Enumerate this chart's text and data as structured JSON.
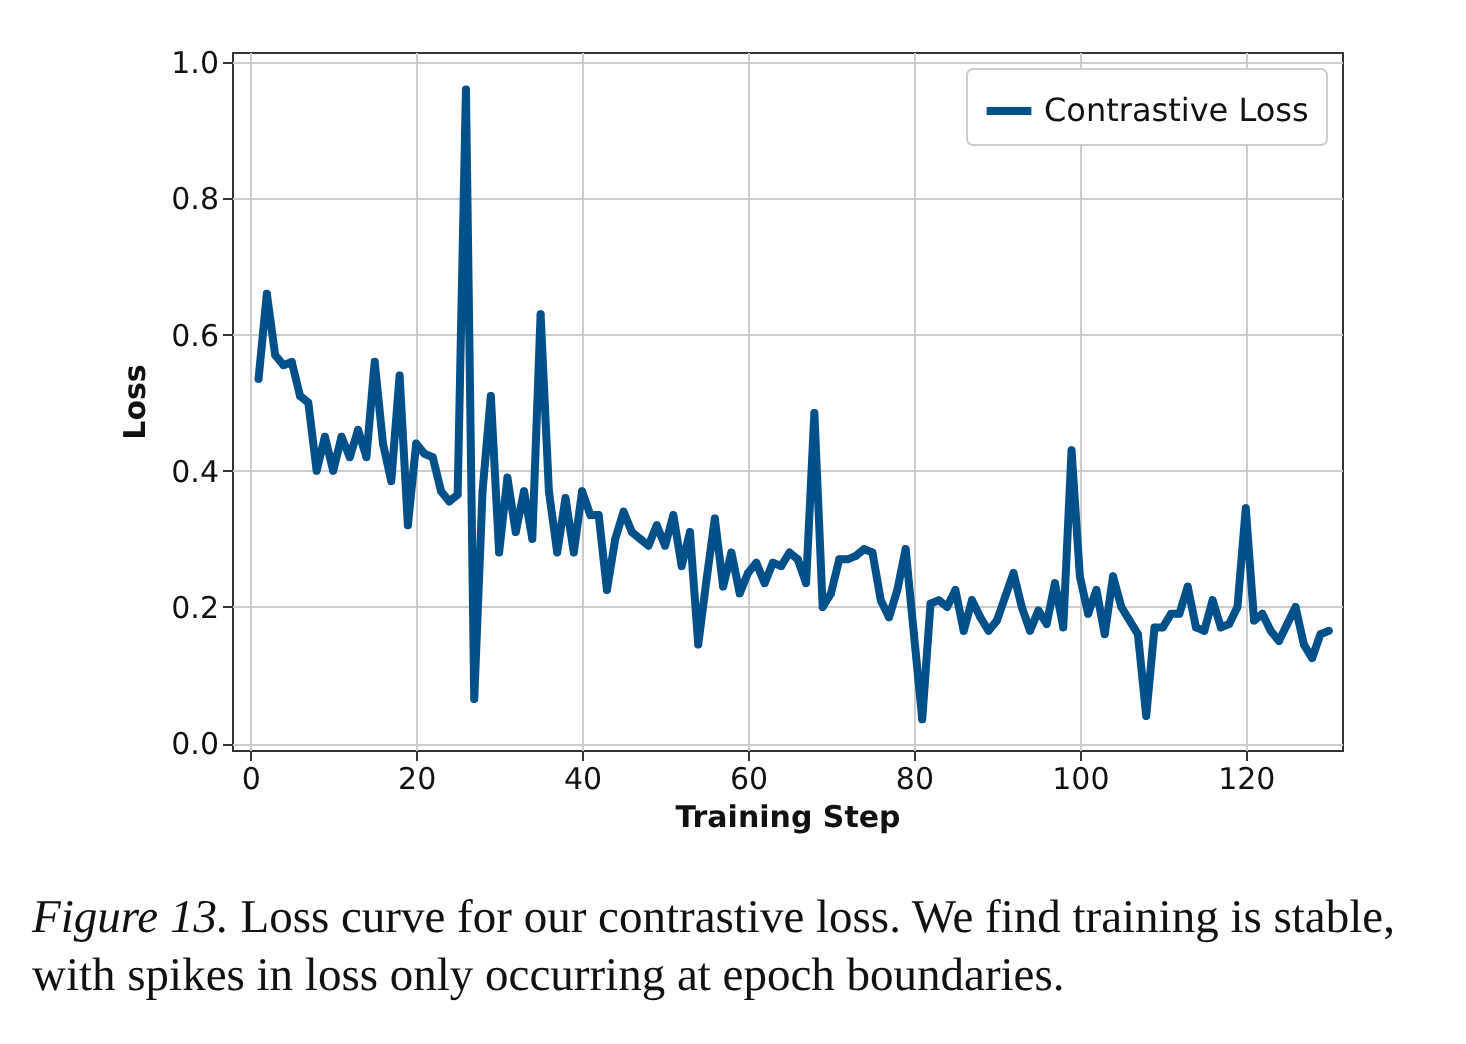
{
  "chart_data": {
    "type": "line",
    "xlabel": "Training Step",
    "ylabel": "Loss",
    "x": [
      1,
      2,
      3,
      4,
      5,
      6,
      7,
      8,
      9,
      10,
      11,
      12,
      13,
      14,
      15,
      16,
      17,
      18,
      19,
      20,
      21,
      22,
      23,
      24,
      25,
      26,
      27,
      28,
      29,
      30,
      31,
      32,
      33,
      34,
      35,
      36,
      37,
      38,
      39,
      40,
      41,
      42,
      43,
      44,
      45,
      46,
      47,
      48,
      49,
      50,
      51,
      52,
      53,
      54,
      55,
      56,
      57,
      58,
      59,
      60,
      61,
      62,
      63,
      64,
      65,
      66,
      67,
      68,
      69,
      70,
      71,
      72,
      73,
      74,
      75,
      76,
      77,
      78,
      79,
      80,
      81,
      82,
      83,
      84,
      85,
      86,
      87,
      88,
      89,
      90,
      91,
      92,
      93,
      94,
      95,
      96,
      97,
      98,
      99,
      100,
      101,
      102,
      103,
      104,
      105,
      106,
      107,
      108,
      109,
      110,
      111,
      112,
      113,
      114,
      115,
      116,
      117,
      118,
      119,
      120,
      121,
      122,
      123,
      124,
      125,
      126,
      127,
      128,
      129,
      130
    ],
    "series": [
      {
        "name": "Contrastive Loss",
        "color": "#00508a",
        "values": [
          0.535,
          0.66,
          0.57,
          0.555,
          0.56,
          0.51,
          0.5,
          0.4,
          0.45,
          0.4,
          0.45,
          0.42,
          0.46,
          0.42,
          0.56,
          0.44,
          0.385,
          0.54,
          0.32,
          0.44,
          0.425,
          0.42,
          0.37,
          0.355,
          0.365,
          0.96,
          0.065,
          0.37,
          0.51,
          0.28,
          0.39,
          0.31,
          0.37,
          0.3,
          0.63,
          0.37,
          0.28,
          0.36,
          0.28,
          0.37,
          0.335,
          0.335,
          0.225,
          0.3,
          0.34,
          0.31,
          0.3,
          0.29,
          0.32,
          0.29,
          0.335,
          0.26,
          0.31,
          0.145,
          0.24,
          0.33,
          0.23,
          0.28,
          0.22,
          0.25,
          0.265,
          0.235,
          0.265,
          0.26,
          0.28,
          0.27,
          0.235,
          0.485,
          0.2,
          0.22,
          0.27,
          0.27,
          0.275,
          0.285,
          0.28,
          0.21,
          0.185,
          0.225,
          0.285,
          0.16,
          0.035,
          0.205,
          0.21,
          0.2,
          0.225,
          0.165,
          0.21,
          0.185,
          0.165,
          0.18,
          0.215,
          0.25,
          0.2,
          0.165,
          0.195,
          0.175,
          0.235,
          0.17,
          0.43,
          0.245,
          0.19,
          0.225,
          0.16,
          0.245,
          0.2,
          0.18,
          0.16,
          0.04,
          0.17,
          0.17,
          0.19,
          0.19,
          0.23,
          0.17,
          0.165,
          0.21,
          0.17,
          0.175,
          0.2,
          0.345,
          0.18,
          0.19,
          0.165,
          0.15,
          0.175,
          0.2,
          0.145,
          0.125,
          0.16,
          0.165
        ]
      }
    ],
    "xlim": [
      -2.2,
      131.6
    ],
    "xticks": [
      0,
      20,
      40,
      60,
      80,
      100,
      120
    ],
    "ylim": [
      -0.01,
      1.015
    ],
    "yticks": [
      {
        "value": 0,
        "label": "0.0"
      },
      0.2,
      0.4,
      0.6,
      0.8,
      {
        "value": 1,
        "label": "1.0"
      }
    ],
    "grid": true,
    "legend": "top right",
    "marker": "circle",
    "line_style": "solid",
    "annotations": [
      "Figure 13. Loss curve for our contrastive loss. We find training is stable, with spikes in loss only occurring at epoch boundaries."
    ]
  }
}
